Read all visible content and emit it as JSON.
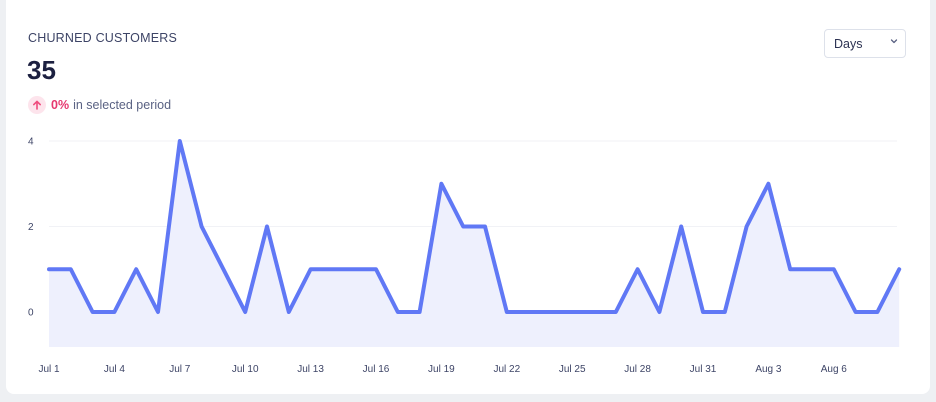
{
  "metric": {
    "label": "CHURNED CUSTOMERS",
    "value": "35",
    "change_pct": "0%",
    "change_text": "in selected period"
  },
  "period_select": {
    "value": "Days"
  },
  "colors": {
    "line": "#6078f5",
    "fill": "#eef0fd",
    "accent": "#ef4b7d"
  },
  "icons": {
    "trend": "arrow-up-icon",
    "dropdown": "chevron-down-icon"
  },
  "chart_data": {
    "type": "area",
    "x": [
      "Jul 1",
      "Jul 2",
      "Jul 3",
      "Jul 4",
      "Jul 5",
      "Jul 6",
      "Jul 7",
      "Jul 8",
      "Jul 9",
      "Jul 10",
      "Jul 11",
      "Jul 12",
      "Jul 13",
      "Jul 14",
      "Jul 15",
      "Jul 16",
      "Jul 17",
      "Jul 18",
      "Jul 19",
      "Jul 20",
      "Jul 21",
      "Jul 22",
      "Jul 23",
      "Jul 24",
      "Jul 25",
      "Jul 26",
      "Jul 27",
      "Jul 28",
      "Jul 29",
      "Jul 30",
      "Jul 31",
      "Aug 1",
      "Aug 2",
      "Aug 3",
      "Aug 4",
      "Aug 5",
      "Aug 6",
      "Aug 7",
      "Aug 8",
      "Aug 9"
    ],
    "values": [
      1,
      1,
      0,
      0,
      1,
      0,
      4,
      2,
      1,
      0,
      2,
      0,
      1,
      1,
      1,
      1,
      0,
      0,
      3,
      2,
      2,
      0,
      0,
      0,
      0,
      0,
      0,
      1,
      0,
      2,
      0,
      0,
      2,
      3,
      1,
      1,
      1,
      0,
      0,
      1
    ],
    "xticks": [
      "Jul 1",
      "Jul 4",
      "Jul 7",
      "Jul 10",
      "Jul 13",
      "Jul 16",
      "Jul 19",
      "Jul 22",
      "Jul 25",
      "Jul 28",
      "Jul 31",
      "Aug 3",
      "Aug 6"
    ],
    "yticks": [
      "0",
      "2",
      "4"
    ],
    "ylim": [
      0,
      4
    ],
    "grid": true,
    "legend": "none"
  }
}
